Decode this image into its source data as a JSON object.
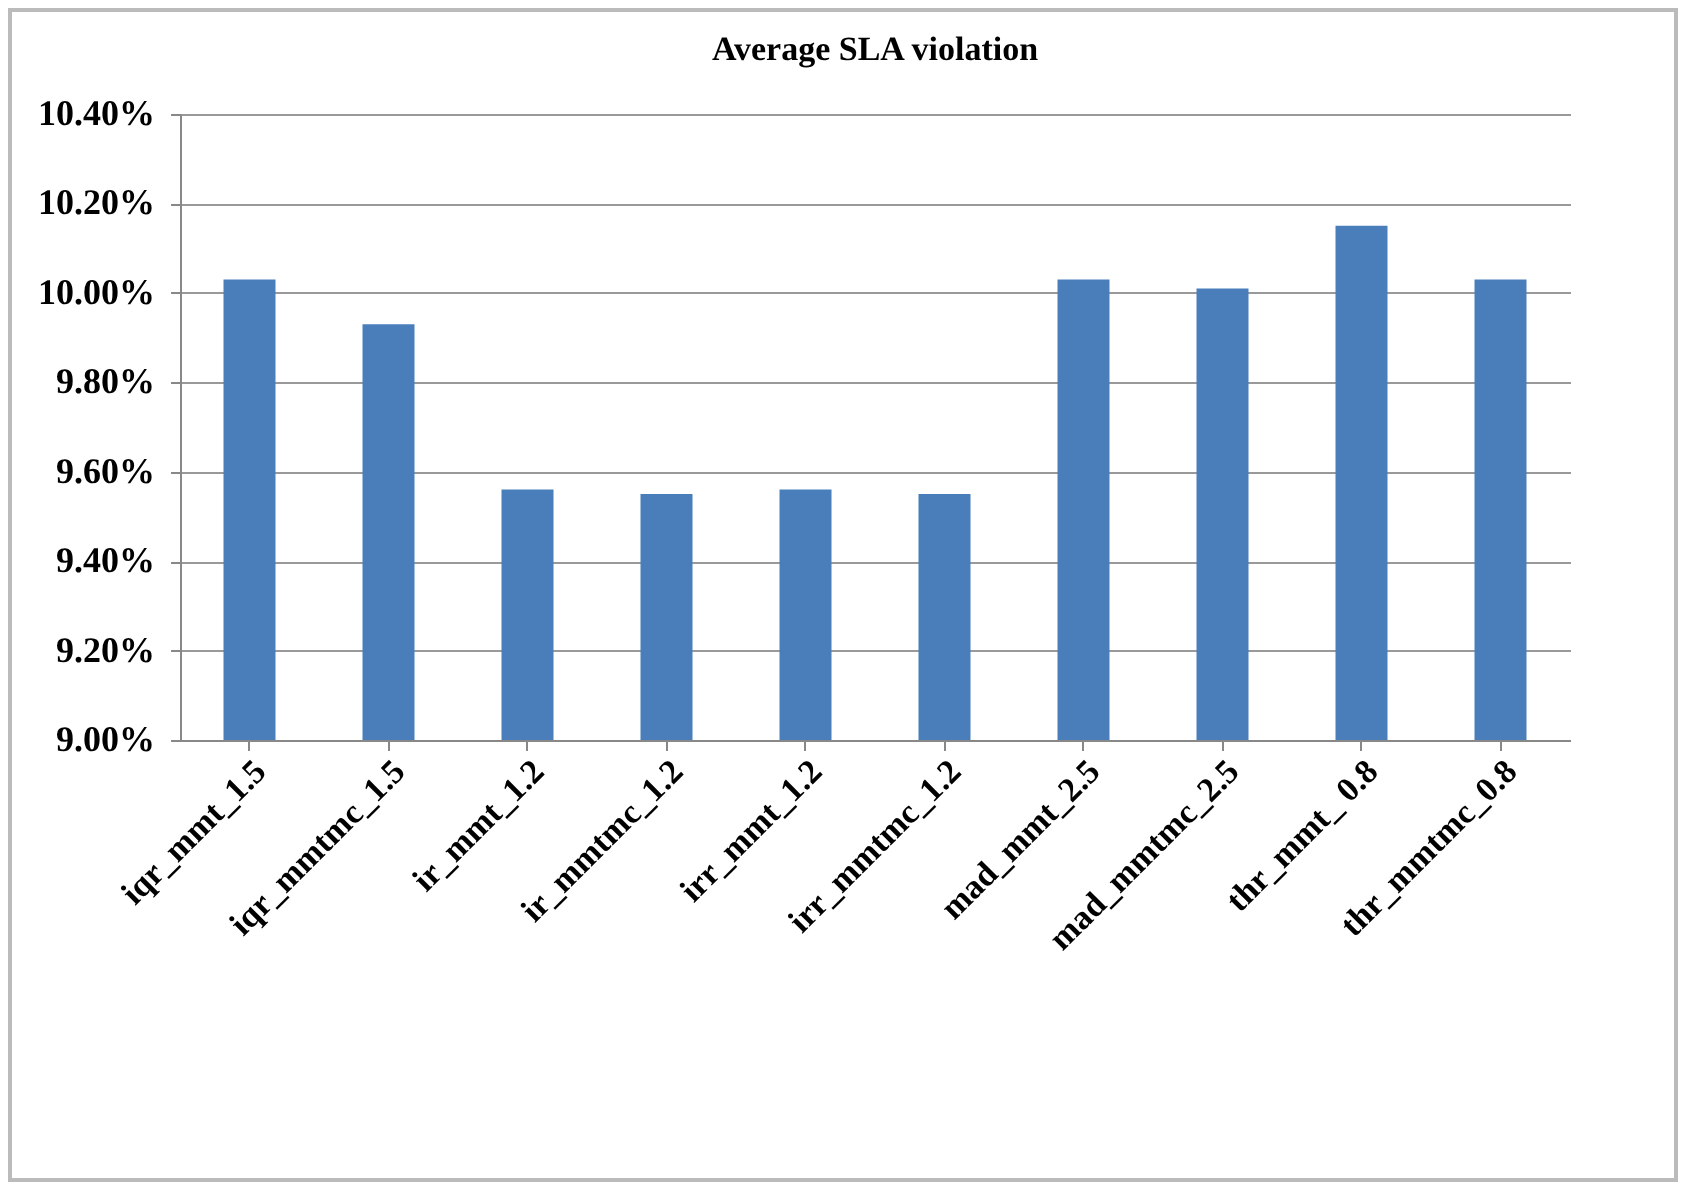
{
  "chart_data": {
    "type": "bar",
    "title": "Average SLA violation",
    "categories": [
      "iqr_mmt_1.5",
      "iqr_mmtmc_1.5",
      "ir_mmt_1.2",
      "ir_mmtmc_1.2",
      "irr_mmt_1.2",
      "irr_mmtmc_1.2",
      "mad_mmt_2.5",
      "mad_mmtmc_2.5",
      "thr_mmt_ 0.8",
      "thr_mmtmc_0.8"
    ],
    "values": [
      10.03,
      9.93,
      9.56,
      9.55,
      9.56,
      9.55,
      10.03,
      10.01,
      10.15,
      10.03
    ],
    "color": "#4a7ebb",
    "ylim": [
      9.0,
      10.4
    ],
    "yticks": [
      {
        "value": 9.0,
        "label": "9.00%"
      },
      {
        "value": 9.2,
        "label": "9.20%"
      },
      {
        "value": 9.4,
        "label": "9.40%"
      },
      {
        "value": 9.6,
        "label": "9.60%"
      },
      {
        "value": 9.8,
        "label": "9.80%"
      },
      {
        "value": 10.0,
        "label": "10.00%"
      },
      {
        "value": 10.2,
        "label": "10.20%"
      },
      {
        "value": 10.4,
        "label": "10.40%"
      }
    ],
    "grid": "y"
  }
}
